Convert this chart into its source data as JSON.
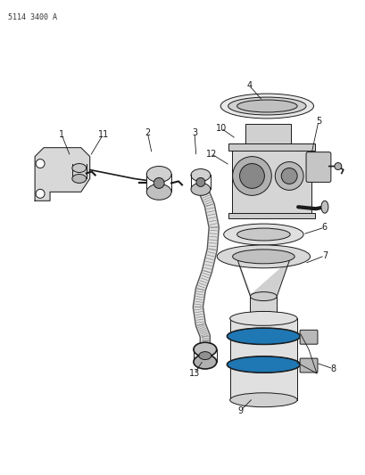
{
  "title": "5114 3400 A",
  "bg_color": "#ffffff",
  "line_color": "#1a1a1a",
  "fig_width": 4.1,
  "fig_height": 5.33,
  "dpi": 100
}
